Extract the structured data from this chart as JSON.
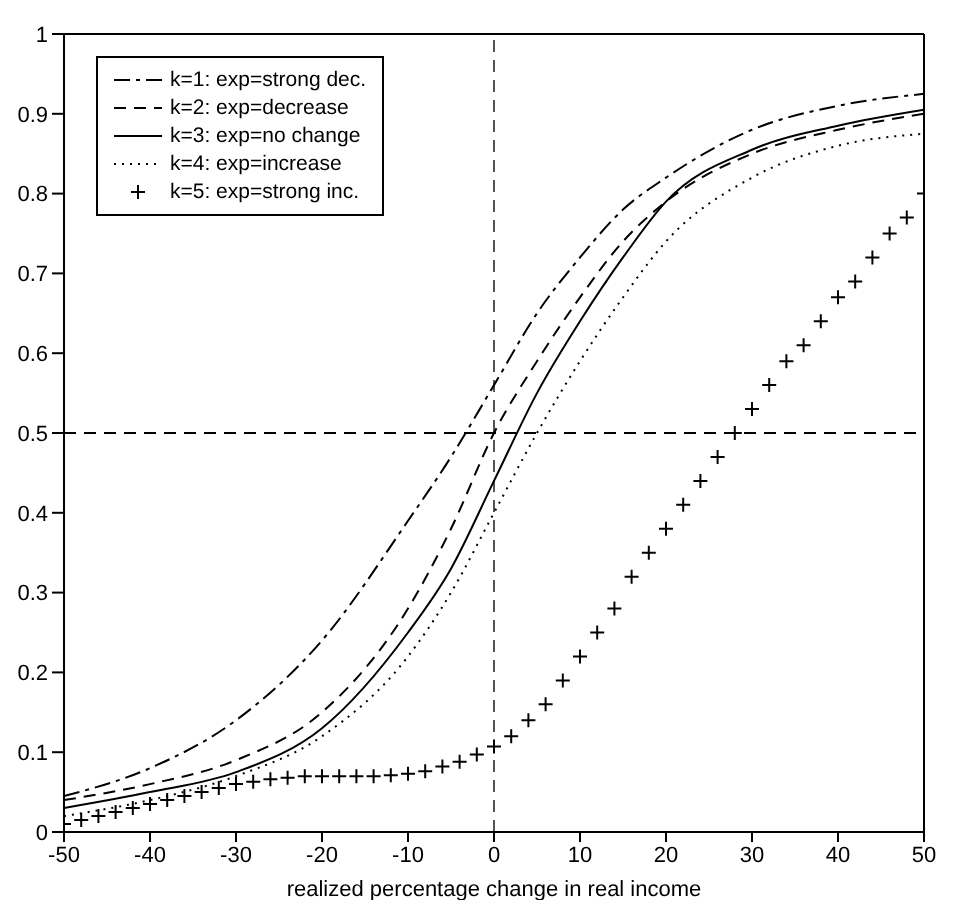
{
  "chart_data": {
    "type": "line",
    "xlabel": "realized percentage change in real income",
    "xlim": [
      -50,
      50
    ],
    "xticks": [
      -50,
      -40,
      -30,
      -20,
      -10,
      0,
      10,
      20,
      30,
      40,
      50
    ],
    "ylim": [
      0,
      1
    ],
    "yticks": [
      0,
      0.1,
      0.2,
      0.3,
      0.4,
      0.5,
      0.6,
      0.7,
      0.8,
      0.9,
      1
    ],
    "legend": "top left",
    "ref_lines": [
      {
        "axis": "y",
        "value": 0.5,
        "color": "#000000",
        "line_style": "dashed"
      },
      {
        "axis": "x",
        "value": 0,
        "color": "#555555",
        "line_style": "dashed"
      }
    ],
    "series": [
      {
        "name": "k=1: exp=strong dec.",
        "color": "#000000",
        "line_style": "dashdot",
        "marker": "none",
        "x": [
          -50,
          -40,
          -30,
          -20,
          -10,
          -5,
          0,
          5,
          10,
          15,
          20,
          30,
          40,
          50
        ],
        "values": [
          0.045,
          0.08,
          0.14,
          0.24,
          0.39,
          0.47,
          0.56,
          0.65,
          0.72,
          0.78,
          0.82,
          0.88,
          0.91,
          0.925
        ]
      },
      {
        "name": "k=2: exp=decrease",
        "color": "#000000",
        "line_style": "dashed",
        "marker": "none",
        "x": [
          -50,
          -40,
          -30,
          -20,
          -10,
          -5,
          0,
          5,
          10,
          15,
          20,
          30,
          40,
          50
        ],
        "values": [
          0.04,
          0.06,
          0.09,
          0.15,
          0.28,
          0.38,
          0.5,
          0.59,
          0.67,
          0.74,
          0.79,
          0.85,
          0.88,
          0.9
        ]
      },
      {
        "name": "k=3: exp=no change",
        "color": "#000000",
        "line_style": "solid",
        "marker": "none",
        "x": [
          -50,
          -40,
          -30,
          -20,
          -10,
          -5,
          0,
          5,
          10,
          15,
          20,
          30,
          40,
          50
        ],
        "values": [
          0.03,
          0.05,
          0.075,
          0.13,
          0.25,
          0.33,
          0.44,
          0.55,
          0.64,
          0.72,
          0.79,
          0.855,
          0.885,
          0.905
        ]
      },
      {
        "name": "k=4: exp=increase",
        "color": "#000000",
        "line_style": "dotted",
        "marker": "none",
        "x": [
          -50,
          -40,
          -30,
          -20,
          -10,
          -5,
          0,
          5,
          10,
          15,
          20,
          30,
          40,
          50
        ],
        "values": [
          0.02,
          0.04,
          0.07,
          0.12,
          0.22,
          0.3,
          0.4,
          0.5,
          0.59,
          0.67,
          0.74,
          0.82,
          0.86,
          0.875
        ]
      },
      {
        "name": "k=5: exp=strong inc.",
        "type": "scatter",
        "color": "#000000",
        "marker": "cross",
        "x": [
          -50,
          -48,
          -46,
          -44,
          -42,
          -40,
          -38,
          -36,
          -34,
          -32,
          -30,
          -28,
          -26,
          -24,
          -22,
          -20,
          -18,
          -16,
          -14,
          -12,
          -10,
          -8,
          -6,
          -4,
          -2,
          0,
          2,
          4,
          6,
          8,
          10,
          12,
          14,
          16,
          18,
          20,
          22,
          24,
          26,
          28,
          30,
          32,
          34,
          36,
          38,
          40,
          42,
          44,
          46,
          48,
          50
        ],
        "values": [
          0.01,
          0.015,
          0.02,
          0.025,
          0.03,
          0.035,
          0.04,
          0.045,
          0.05,
          0.055,
          0.06,
          0.063,
          0.066,
          0.068,
          0.07,
          0.07,
          0.07,
          0.07,
          0.07,
          0.071,
          0.073,
          0.076,
          0.082,
          0.088,
          0.097,
          0.107,
          0.12,
          0.14,
          0.16,
          0.19,
          0.22,
          0.25,
          0.28,
          0.32,
          0.35,
          0.38,
          0.41,
          0.44,
          0.47,
          0.5,
          0.53,
          0.56,
          0.59,
          0.61,
          0.64,
          0.67,
          0.69,
          0.72,
          0.75,
          0.77,
          0.8
        ]
      }
    ]
  }
}
